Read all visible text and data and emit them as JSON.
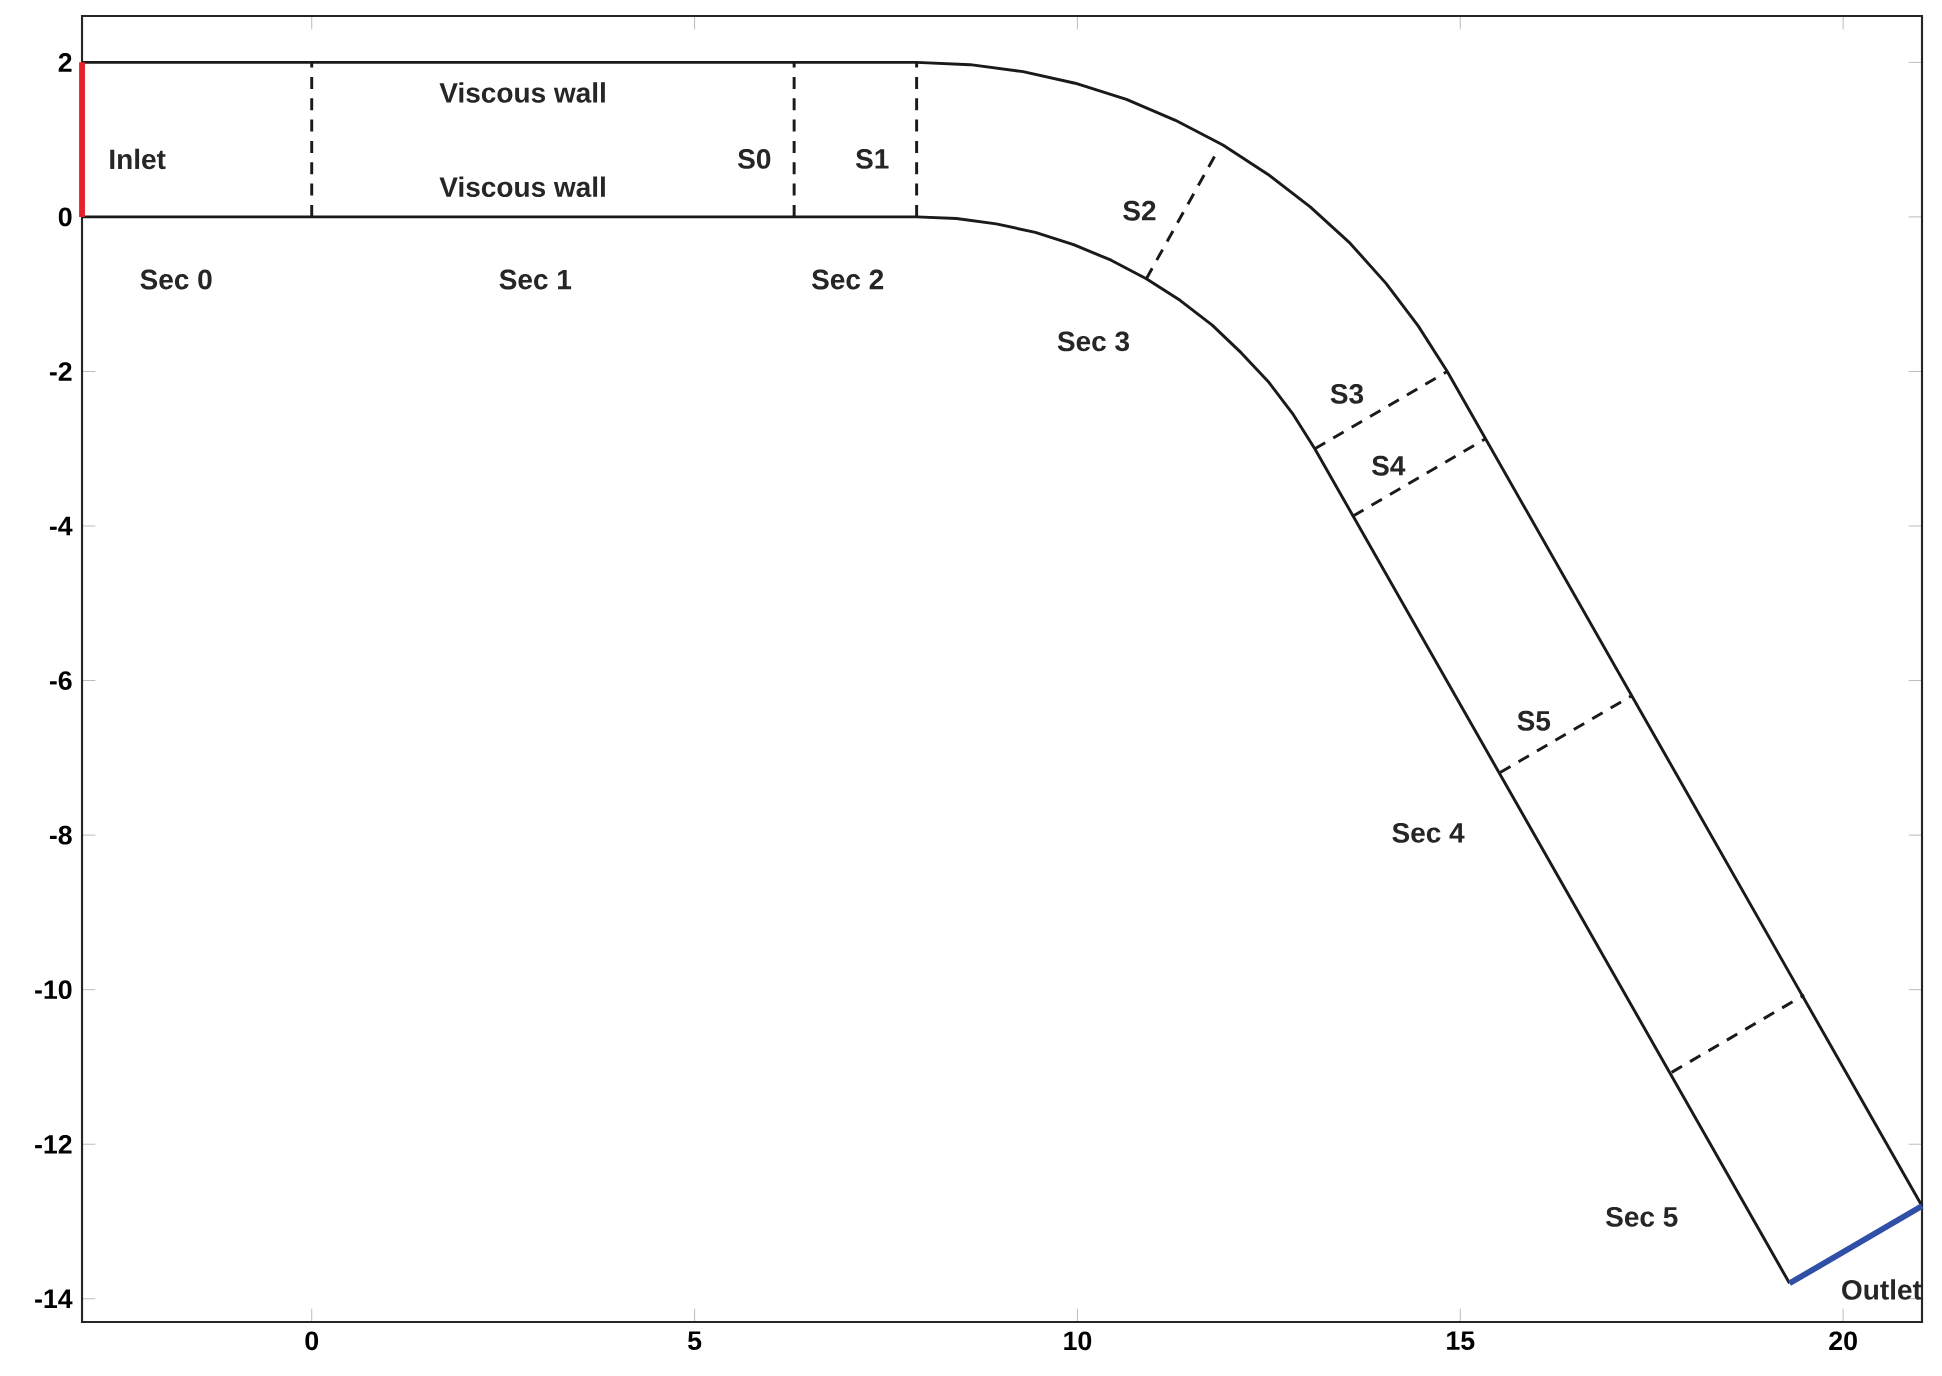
{
  "chart_data": {
    "type": "line",
    "xlim": [
      -3,
      21.03
    ],
    "ylim": [
      -14.3,
      2.6
    ],
    "xticks": [
      0,
      5,
      10,
      15,
      20
    ],
    "yticks": [
      -14,
      -12,
      -10,
      -8,
      -6,
      -4,
      -2,
      0,
      2
    ],
    "series": [
      {
        "color": "#1a1a1a",
        "line_style": "solid",
        "x": [
          -3,
          7.9,
          8.6,
          9.29,
          9.97,
          10.64,
          11.28,
          11.9,
          12.49,
          13.04,
          13.56,
          14.03,
          14.45,
          14.83,
          21.03
        ],
        "values": [
          2,
          2,
          1.97,
          1.88,
          1.73,
          1.52,
          1.25,
          0.93,
          0.55,
          0.13,
          -0.34,
          -0.86,
          -1.41,
          -2.0,
          -12.8
        ]
      },
      {
        "color": "#1a1a1a",
        "line_style": "solid",
        "x": [
          -3,
          7.9,
          8.42,
          8.94,
          9.45,
          9.95,
          10.44,
          10.9,
          11.34,
          11.76,
          12.14,
          12.5,
          12.82,
          13.1,
          19.3
        ],
        "values": [
          0,
          0,
          -0.02,
          -0.09,
          -0.2,
          -0.36,
          -0.56,
          -0.8,
          -1.08,
          -1.4,
          -1.76,
          -2.14,
          -2.56,
          -3.0,
          -13.8
        ]
      },
      {
        "color": "#e8202a",
        "line_style": "solid",
        "x": [
          -3,
          -3
        ],
        "values": [
          0,
          2
        ]
      },
      {
        "color": "#3050a8",
        "line_style": "solid",
        "x": [
          19.3,
          21.03
        ],
        "values": [
          -13.8,
          -12.8
        ]
      },
      {
        "color": "#1a1a1a",
        "line_style": "dashed",
        "x": [
          0,
          0
        ],
        "values": [
          0,
          2
        ]
      },
      {
        "color": "#1a1a1a",
        "line_style": "dashed",
        "x": [
          6.3,
          6.3
        ],
        "values": [
          0,
          2
        ]
      },
      {
        "color": "#1a1a1a",
        "line_style": "dashed",
        "x": [
          7.9,
          7.9
        ],
        "values": [
          0,
          2
        ]
      },
      {
        "color": "#1a1a1a",
        "line_style": "dashed",
        "x": [
          10.9,
          11.8
        ],
        "values": [
          -0.8,
          0.8
        ]
      },
      {
        "color": "#1a1a1a",
        "line_style": "dashed",
        "x": [
          13.1,
          14.83
        ],
        "values": [
          -3.0,
          -2.0
        ]
      },
      {
        "color": "#1a1a1a",
        "line_style": "dashed",
        "x": [
          13.6,
          15.33
        ],
        "values": [
          -3.87,
          -2.87
        ]
      },
      {
        "color": "#1a1a1a",
        "line_style": "dashed",
        "x": [
          15.52,
          17.25
        ],
        "values": [
          -7.19,
          -6.19
        ]
      },
      {
        "color": "#1a1a1a",
        "line_style": "dashed",
        "x": [
          17.76,
          19.49
        ],
        "values": [
          -11.07,
          -10.07
        ]
      }
    ],
    "annotations": [
      "Inlet",
      "Viscous wall",
      "Viscous wall",
      "S0",
      "S1",
      "S2",
      "Sec 0",
      "Sec 1",
      "Sec 2",
      "Sec 3",
      "S3",
      "S4",
      "S5",
      "Sec 4",
      "Sec 5",
      "Outlet"
    ]
  }
}
